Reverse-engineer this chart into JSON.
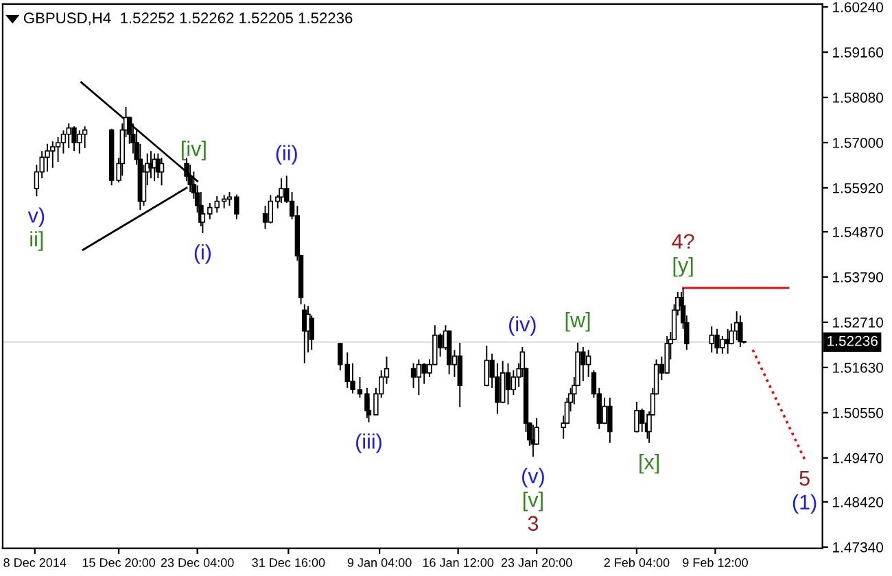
{
  "chart_data": {
    "type": "candlestick",
    "title": "GBPUSD,H4  1.52252 1.52262 1.52205 1.52236",
    "x": [
      "2014-12-08T04:00",
      "2014-12-08T16:00",
      "2014-12-09T04:00",
      "2014-12-09T16:00",
      "2014-12-10T04:00",
      "2014-12-10T16:00",
      "2014-12-11T04:00",
      "2014-12-11T16:00",
      "2014-12-12T04:00",
      "2014-12-12T16:00",
      "2014-12-15T04:00",
      "2014-12-15T20:00",
      "2014-12-16T04:00",
      "2014-12-16T12:00",
      "2014-12-16T20:00",
      "2014-12-17T04:00",
      "2014-12-17T12:00",
      "2014-12-17T20:00",
      "2014-12-18T04:00",
      "2014-12-18T12:00",
      "2014-12-18T20:00",
      "2014-12-19T04:00",
      "2014-12-19T12:00",
      "2014-12-19T20:00",
      "2014-12-22T04:00",
      "2014-12-22T12:00",
      "2014-12-22T20:00",
      "2014-12-23T04:00",
      "2014-12-23T12:00",
      "2014-12-23T16:00",
      "2014-12-24T08:00",
      "2014-12-25T00:00",
      "2014-12-25T16:00",
      "2014-12-26T04:00",
      "2014-12-26T20:00",
      "2014-12-29T12:00",
      "2014-12-30T00:00",
      "2014-12-30T16:00",
      "2014-12-31T00:00",
      "2014-12-31T12:00",
      "2015-01-01T00:00",
      "2015-01-01T12:00",
      "2015-01-01T20:00",
      "2015-01-02T04:00",
      "2015-01-02T12:00",
      "2015-01-02T20:00",
      "2015-01-05T12:00",
      "2015-01-06T04:00",
      "2015-01-06T16:00",
      "2015-01-07T08:00",
      "2015-01-08T00:00",
      "2015-01-08T04:00",
      "2015-01-08T20:00",
      "2015-01-09T08:00",
      "2015-01-09T20:00",
      "2015-01-12T08:00",
      "2015-01-12T20:00",
      "2015-01-13T08:00",
      "2015-01-13T20:00",
      "2015-01-14T08:00",
      "2015-01-14T20:00",
      "2015-01-15T08:00",
      "2015-01-15T16:00",
      "2015-01-16T04:00",
      "2015-01-16T16:00",
      "2015-01-19T04:00",
      "2015-01-19T16:00",
      "2015-01-20T04:00",
      "2015-01-20T16:00",
      "2015-01-21T04:00",
      "2015-01-21T16:00",
      "2015-01-22T04:00",
      "2015-01-22T12:00",
      "2015-01-22T20:00",
      "2015-01-23T04:00",
      "2015-01-23T12:00",
      "2015-01-23T20:00",
      "2015-01-26T08:00",
      "2015-01-26T16:00",
      "2015-01-27T00:00",
      "2015-01-27T08:00",
      "2015-01-27T16:00",
      "2015-01-28T04:00",
      "2015-01-28T16:00",
      "2015-01-29T04:00",
      "2015-01-29T16:00",
      "2015-01-30T04:00",
      "2015-01-30T16:00",
      "2015-02-02T04:00",
      "2015-02-02T16:00",
      "2015-02-03T04:00",
      "2015-02-03T08:00",
      "2015-02-03T16:00",
      "2015-02-04T00:00",
      "2015-02-04T12:00",
      "2015-02-05T00:00",
      "2015-02-05T08:00",
      "2015-02-05T16:00",
      "2015-02-06T00:00",
      "2015-02-06T08:00",
      "2015-02-06T12:00",
      "2015-02-06T20:00",
      "2015-02-09T04:00",
      "2015-02-09T16:00",
      "2015-02-10T04:00",
      "2015-02-10T16:00",
      "2015-02-11T00:00",
      "2015-02-11T12:00",
      "2015-02-11T20:00",
      "2015-02-12T04:00"
    ],
    "ohlc": [
      [
        1.559,
        1.5647,
        1.5572,
        1.563
      ],
      [
        1.563,
        1.568,
        1.5615,
        1.5665
      ],
      [
        1.5665,
        1.5697,
        1.5631,
        1.568
      ],
      [
        1.568,
        1.5703,
        1.564,
        1.569
      ],
      [
        1.569,
        1.5713,
        1.5654,
        1.57
      ],
      [
        1.57,
        1.5729,
        1.5674,
        1.572
      ],
      [
        1.572,
        1.5746,
        1.5687,
        1.5735
      ],
      [
        1.5735,
        1.5739,
        1.568,
        1.57
      ],
      [
        1.57,
        1.5729,
        1.5674,
        1.572
      ],
      [
        1.572,
        1.5739,
        1.5687,
        1.573
      ],
      [
        1.573,
        1.5733,
        1.5598,
        1.561
      ],
      [
        1.561,
        1.5664,
        1.5605,
        1.565
      ],
      [
        1.565,
        1.5746,
        1.5621,
        1.573
      ],
      [
        1.573,
        1.5785,
        1.5713,
        1.576
      ],
      [
        1.576,
        1.5762,
        1.5697,
        1.572
      ],
      [
        1.572,
        1.5746,
        1.5674,
        1.57
      ],
      [
        1.57,
        1.5729,
        1.5647,
        1.566
      ],
      [
        1.566,
        1.5697,
        1.5539,
        1.556
      ],
      [
        1.556,
        1.5647,
        1.5549,
        1.563
      ],
      [
        1.563,
        1.5674,
        1.5598,
        1.565
      ],
      [
        1.565,
        1.568,
        1.5615,
        1.564
      ],
      [
        1.564,
        1.5674,
        1.5608,
        1.566
      ],
      [
        1.566,
        1.5674,
        1.5615,
        1.563
      ],
      [
        1.563,
        1.5664,
        1.5598,
        1.565
      ],
      [
        1.565,
        1.5664,
        1.5608,
        1.562
      ],
      [
        1.562,
        1.5647,
        1.5582,
        1.56
      ],
      [
        1.56,
        1.5631,
        1.5566,
        1.558
      ],
      [
        1.558,
        1.5598,
        1.5533,
        1.555
      ],
      [
        1.555,
        1.5582,
        1.55,
        1.551
      ],
      [
        1.551,
        1.5549,
        1.5484,
        1.553
      ],
      [
        1.553,
        1.5556,
        1.5517,
        1.5545
      ],
      [
        1.5545,
        1.5572,
        1.5533,
        1.556
      ],
      [
        1.556,
        1.5575,
        1.5543,
        1.5565
      ],
      [
        1.5565,
        1.5582,
        1.5549,
        1.557
      ],
      [
        1.557,
        1.5576,
        1.5517,
        1.553
      ],
      [
        1.553,
        1.5549,
        1.5494,
        1.551
      ],
      [
        1.551,
        1.5575,
        1.5507,
        1.556
      ],
      [
        1.556,
        1.5575,
        1.5543,
        1.557
      ],
      [
        1.557,
        1.5615,
        1.5556,
        1.559
      ],
      [
        1.559,
        1.5621,
        1.5556,
        1.556
      ],
      [
        1.556,
        1.5582,
        1.5517,
        1.5525
      ],
      [
        1.5525,
        1.5549,
        1.5418,
        1.543
      ],
      [
        1.543,
        1.5432,
        1.5314,
        1.533
      ],
      [
        1.53,
        1.5314,
        1.5173,
        1.525
      ],
      [
        1.525,
        1.531,
        1.5199,
        1.529
      ],
      [
        1.528,
        1.5287,
        1.5205,
        1.523
      ],
      [
        1.522,
        1.5222,
        1.5156,
        1.517
      ],
      [
        1.517,
        1.5199,
        1.5114,
        1.513
      ],
      [
        1.513,
        1.5173,
        1.5101,
        1.511
      ],
      [
        1.511,
        1.514,
        1.5091,
        1.51
      ],
      [
        1.51,
        1.5114,
        1.5042,
        1.506
      ],
      [
        1.506,
        1.5091,
        1.5032,
        1.505
      ],
      [
        1.505,
        1.5114,
        1.505,
        1.51
      ],
      [
        1.51,
        1.5156,
        1.5091,
        1.514
      ],
      [
        1.514,
        1.5189,
        1.5124,
        1.516
      ],
      [
        1.516,
        1.5173,
        1.5114,
        1.514
      ],
      [
        1.514,
        1.5182,
        1.5097,
        1.517
      ],
      [
        1.517,
        1.5173,
        1.5124,
        1.515
      ],
      [
        1.515,
        1.5182,
        1.514,
        1.517
      ],
      [
        1.517,
        1.5264,
        1.517,
        1.524
      ],
      [
        1.524,
        1.5244,
        1.5189,
        1.521
      ],
      [
        1.521,
        1.5264,
        1.5205,
        1.525
      ],
      [
        1.525,
        1.5252,
        1.5147,
        1.517
      ],
      [
        1.517,
        1.5205,
        1.514,
        1.519
      ],
      [
        1.519,
        1.5222,
        1.5068,
        1.512
      ],
      [
        1.512,
        1.5215,
        1.5118,
        1.518
      ],
      [
        1.518,
        1.5196,
        1.5114,
        1.514
      ],
      [
        1.514,
        1.5173,
        1.5052,
        1.508
      ],
      [
        1.508,
        1.5179,
        1.5078,
        1.515
      ],
      [
        1.515,
        1.5173,
        1.5075,
        1.511
      ],
      [
        1.511,
        1.5156,
        1.5097,
        1.514
      ],
      [
        1.514,
        1.5173,
        1.5117,
        1.516
      ],
      [
        1.516,
        1.5212,
        1.514,
        1.52
      ],
      [
        1.516,
        1.5163,
        1.5009,
        1.503
      ],
      [
        1.503,
        1.5032,
        1.4976,
        1.499
      ],
      [
        1.499,
        1.5026,
        1.495,
        1.498
      ],
      [
        1.498,
        1.5042,
        1.4978,
        1.502
      ],
      [
        1.502,
        1.5048,
        1.4993,
        1.503
      ],
      [
        1.503,
        1.5091,
        1.5028,
        1.508
      ],
      [
        1.508,
        1.5114,
        1.5058,
        1.51
      ],
      [
        1.51,
        1.514,
        1.5075,
        1.512
      ],
      [
        1.512,
        1.5222,
        1.5118,
        1.52
      ],
      [
        1.52,
        1.5212,
        1.513,
        1.517
      ],
      [
        1.517,
        1.5205,
        1.514,
        1.519
      ],
      [
        1.515,
        1.5156,
        1.5091,
        1.51
      ],
      [
        1.51,
        1.5114,
        1.5016,
        1.503
      ],
      [
        1.503,
        1.5091,
        1.5028,
        1.507
      ],
      [
        1.507,
        1.5091,
        1.4983,
        1.501
      ],
      [
        1.501,
        1.5081,
        1.5008,
        1.506
      ],
      [
        1.506,
        1.5065,
        1.5009,
        1.503
      ],
      [
        1.503,
        1.5052,
        1.4993,
        1.501
      ],
      [
        1.501,
        1.5058,
        1.4983,
        1.505
      ],
      [
        1.505,
        1.5114,
        1.5048,
        1.51
      ],
      [
        1.51,
        1.5182,
        1.5098,
        1.517
      ],
      [
        1.517,
        1.5189,
        1.5133,
        1.515
      ],
      [
        1.515,
        1.5238,
        1.5148,
        1.522
      ],
      [
        1.522,
        1.5248,
        1.5182,
        1.523
      ],
      [
        1.523,
        1.5314,
        1.5228,
        1.53
      ],
      [
        1.53,
        1.5343,
        1.5287,
        1.533
      ],
      [
        1.533,
        1.5343,
        1.5297,
        1.531
      ],
      [
        1.531,
        1.5353,
        1.5255,
        1.527
      ],
      [
        1.527,
        1.5287,
        1.5205,
        1.522
      ],
      [
        1.522,
        1.5261,
        1.5199,
        1.524
      ],
      [
        1.524,
        1.5255,
        1.5196,
        1.521
      ],
      [
        1.521,
        1.5238,
        1.5196,
        1.523
      ],
      [
        1.523,
        1.5255,
        1.5196,
        1.522
      ],
      [
        1.522,
        1.5268,
        1.5218,
        1.525
      ],
      [
        1.525,
        1.5297,
        1.5228,
        1.527
      ],
      [
        1.527,
        1.5287,
        1.5212,
        1.5225
      ],
      [
        1.52252,
        1.52262,
        1.52205,
        1.52236
      ]
    ],
    "color": "#000000",
    "series": [
      {
        "type": "line",
        "x": [
          "2014-12-12T08:00",
          "2014-12-23T04:00"
        ],
        "values": [
          1.5844,
          1.5608
        ],
        "color": "#000000",
        "line_style": "solid"
      },
      {
        "type": "line",
        "x": [
          "2014-12-12T12:00",
          "2014-12-22T04:00"
        ],
        "values": [
          1.5444,
          1.5592
        ],
        "color": "#000000",
        "line_style": "solid"
      },
      {
        "type": "line",
        "x": [
          "2015-02-06T12:00",
          "2015-02-16T08:00"
        ],
        "values": [
          1.5353,
          1.5353
        ],
        "color": "#ff0000",
        "line_style": "solid"
      },
      {
        "type": "line",
        "x": [
          "2015-02-13T00:00",
          "2015-02-17T20:00"
        ],
        "values": [
          1.5205,
          1.4944
        ],
        "color": "#ff0000",
        "line_style": "dotted"
      }
    ],
    "ref_lines": [
      {
        "axis": "y",
        "value": 1.52236,
        "label": "1.52236",
        "color": "#d8dde6"
      }
    ],
    "annotations": [
      {
        "text": "v)",
        "x": "2014-12-08T04:00",
        "y": 1.5572
      },
      {
        "text": "ii]",
        "x": "2014-12-08T04:00",
        "y": 1.5572
      },
      {
        "text": "[iv]",
        "x": "2014-12-22T20:00",
        "y": 1.5631
      },
      {
        "text": "(ii)",
        "x": "2014-12-31T12:00",
        "y": 1.5621
      },
      {
        "text": "(i)",
        "x": "2014-12-23T16:00",
        "y": 1.5484
      },
      {
        "text": "(iii)",
        "x": "2015-01-08T04:00",
        "y": 1.5032
      },
      {
        "text": "(iv)",
        "x": "2015-01-22T12:00",
        "y": 1.5212
      },
      {
        "text": "[w]",
        "x": "2015-01-27T16:00",
        "y": 1.5222
      },
      {
        "text": "(v)",
        "x": "2015-01-23T12:00",
        "y": 1.495
      },
      {
        "text": "[v]",
        "x": "2015-01-23T12:00",
        "y": 1.495
      },
      {
        "text": "3",
        "x": "2015-01-23T12:00",
        "y": 1.495
      },
      {
        "text": "[x]",
        "x": "2015-02-03T08:00",
        "y": 1.4983
      },
      {
        "text": "[y]",
        "x": "2015-02-06T12:00",
        "y": 1.5353
      },
      {
        "text": "4?",
        "x": "2015-02-06T12:00",
        "y": 1.5353
      },
      {
        "text": "5",
        "x": "2015-02-17T20:00",
        "y": 1.4944
      },
      {
        "text": "(1)",
        "x": "2015-02-17T20:00",
        "y": 1.4944
      }
    ],
    "xlim": [
      "2014-12-05T00:00",
      "2015-02-19T12:00"
    ],
    "xticks": [
      {
        "value": "2014-12-08T00:00",
        "label": "8 Dec 2014"
      },
      {
        "value": "2014-12-15T20:00",
        "label": "15 Dec 20:00"
      },
      {
        "value": "2014-12-23T04:00",
        "label": "23 Dec 04:00"
      },
      {
        "value": "2014-12-31T16:00",
        "label": "31 Dec 16:00"
      },
      {
        "value": "2015-01-09T04:00",
        "label": "9 Jan 04:00"
      },
      {
        "value": "2015-01-16T12:00",
        "label": "16 Jan 12:00"
      },
      {
        "value": "2015-01-23T20:00",
        "label": "23 Jan 20:00"
      },
      {
        "value": "2015-02-02T04:00",
        "label": "2 Feb 04:00"
      },
      {
        "value": "2015-02-09T12:00",
        "label": "9 Feb 12:00"
      }
    ],
    "ylim": [
      1.4731,
      1.6031
    ],
    "yticks": [
      {
        "value": 1.6024,
        "label": "1.60240"
      },
      {
        "value": 1.5916,
        "label": "1.59160"
      },
      {
        "value": 1.5808,
        "label": "1.58080"
      },
      {
        "value": 1.57,
        "label": "1.57000"
      },
      {
        "value": 1.5592,
        "label": "1.55920"
      },
      {
        "value": 1.5487,
        "label": "1.54870"
      },
      {
        "value": 1.5379,
        "label": "1.53790"
      },
      {
        "value": 1.5271,
        "label": "1.52710"
      },
      {
        "value": 1.5163,
        "label": "1.51630"
      },
      {
        "value": 1.5055,
        "label": "1.50550"
      },
      {
        "value": 1.4947,
        "label": "1.49470"
      },
      {
        "value": 1.4842,
        "label": "1.48420"
      },
      {
        "value": 1.4734,
        "label": "1.47340"
      }
    ]
  }
}
